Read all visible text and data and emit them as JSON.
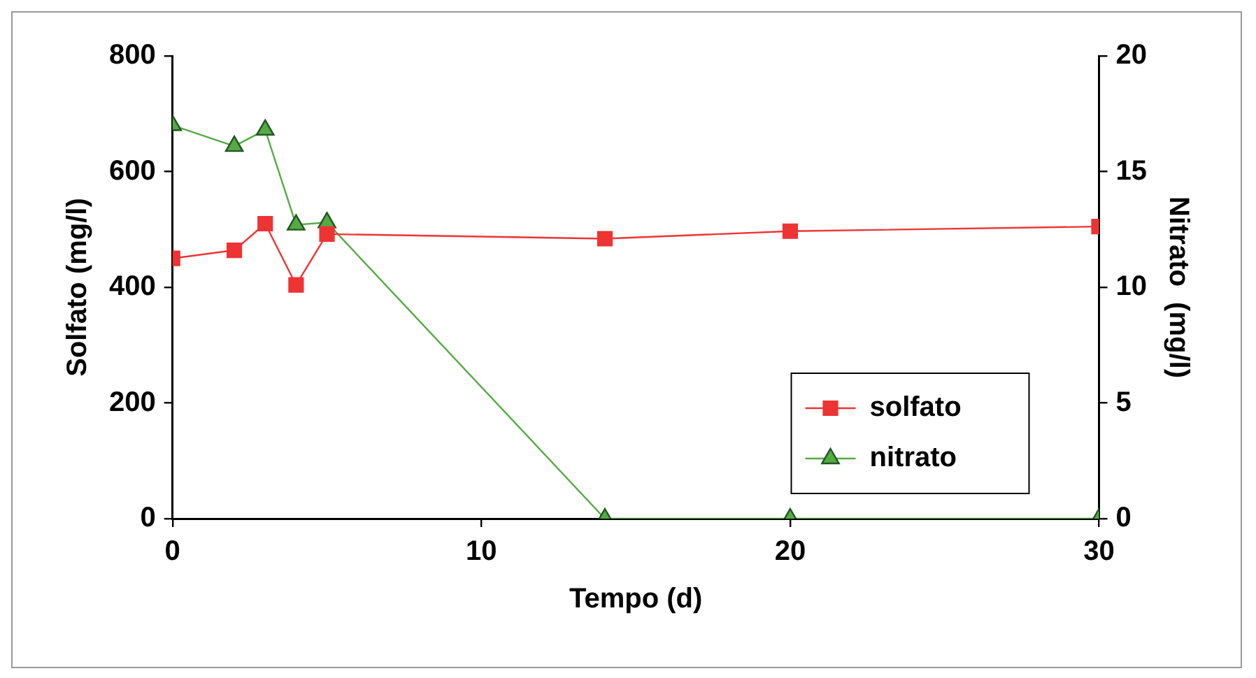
{
  "chart_data": {
    "type": "line",
    "xlabel": "Tempo (d)",
    "ylabel": "Solfato (mg/l)",
    "y2label": "Nitrato  (mg/l)",
    "xlim": [
      0,
      30
    ],
    "xticks": [
      0,
      10,
      20,
      30
    ],
    "ylim": [
      0,
      800
    ],
    "yticks": [
      0,
      200,
      400,
      600,
      800
    ],
    "y2lim": [
      0,
      20
    ],
    "y2ticks": [
      0,
      5,
      10,
      15,
      20
    ],
    "grid": false,
    "legend": "bottom right",
    "series": [
      {
        "name": "solfato",
        "color": "#ee3333",
        "marker": "square",
        "x": [
          0,
          2,
          3,
          4,
          5,
          14,
          20,
          30
        ],
        "values": [
          450,
          464,
          510,
          404,
          492,
          484,
          497,
          505
        ]
      },
      {
        "name": "nitrato",
        "color": "#55aa44",
        "marker": "triangle",
        "axis": "y2",
        "x": [
          0,
          2,
          3,
          4,
          5,
          14,
          20,
          30
        ],
        "values": [
          17.0,
          16.1,
          16.8,
          12.7,
          12.8,
          0,
          0,
          0
        ]
      }
    ]
  }
}
